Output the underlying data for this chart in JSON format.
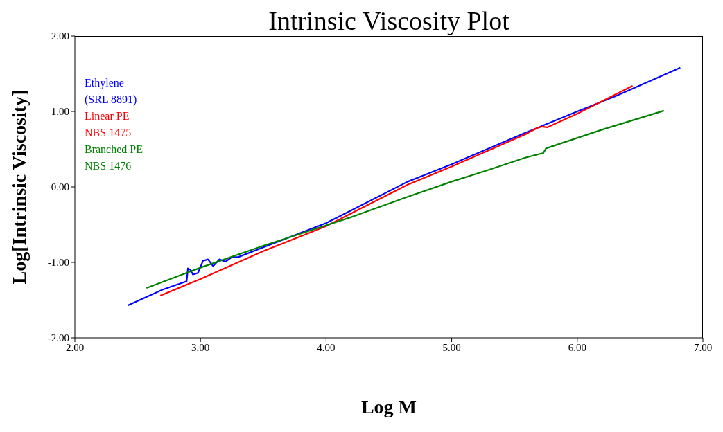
{
  "chart_data": {
    "type": "line",
    "title": "Intrinsic Viscosity Plot",
    "xlabel": "Log M",
    "ylabel": "Log[Intrinsic Viscosity]",
    "xlim": [
      2,
      7
    ],
    "xticks": [
      {
        "value": 2,
        "label": "2.00"
      },
      {
        "value": 3,
        "label": "3.00"
      },
      {
        "value": 4,
        "label": "4.00"
      },
      {
        "value": 5,
        "label": "5.00"
      },
      {
        "value": 6,
        "label": "6.00"
      },
      {
        "value": 7,
        "label": "7.00"
      }
    ],
    "ylim": [
      -2,
      2
    ],
    "yticks": [
      {
        "value": -2,
        "label": "-2.00"
      },
      {
        "value": -1,
        "label": "-1.00"
      },
      {
        "value": 0,
        "label": "0.00"
      },
      {
        "value": 1,
        "label": "1.00"
      },
      {
        "value": 2,
        "label": "2.00"
      }
    ],
    "grid": false,
    "legend": "top left",
    "marker": "none",
    "line_style": "solid",
    "series": [
      {
        "name": "Ethylene\n(SRL 8891)",
        "color": "#0000ff",
        "x": [
          2.42,
          2.7,
          2.89,
          2.9,
          2.92,
          2.94,
          2.98,
          3.02,
          3.06,
          3.1,
          3.15,
          3.2,
          3.25,
          3.3,
          3.5,
          4,
          4.65,
          5,
          5.59,
          6,
          6.3,
          6.82
        ],
        "values": [
          -1.57,
          -1.36,
          -1.25,
          -1.08,
          -1.1,
          -1.16,
          -1.14,
          -0.98,
          -0.96,
          -1.05,
          -0.96,
          -0.99,
          -0.93,
          -0.93,
          -0.8,
          -0.48,
          0.07,
          0.3,
          0.72,
          1.0,
          1.2,
          1.58
        ]
      },
      {
        "name": "Linear PE\nNBS 1475",
        "color": "#ff0000",
        "x": [
          2.68,
          3,
          3.5,
          4,
          4.65,
          5,
          5.59,
          5.68,
          5.72,
          5.76,
          6,
          6.44
        ],
        "values": [
          -1.44,
          -1.22,
          -0.85,
          -0.52,
          0.03,
          0.27,
          0.7,
          0.78,
          0.8,
          0.79,
          0.97,
          1.34
        ]
      },
      {
        "name": "Branched PE\nNBS 1476",
        "color": "#008000",
        "x": [
          2.57,
          3,
          3.5,
          3.87,
          4.2,
          4.65,
          5,
          5.3,
          5.59,
          5.73,
          5.75,
          6.2,
          6.69
        ],
        "values": [
          -1.34,
          -1.07,
          -0.78,
          -0.58,
          -0.4,
          -0.13,
          0.07,
          0.23,
          0.39,
          0.45,
          0.51,
          0.76,
          1.01
        ]
      }
    ]
  }
}
